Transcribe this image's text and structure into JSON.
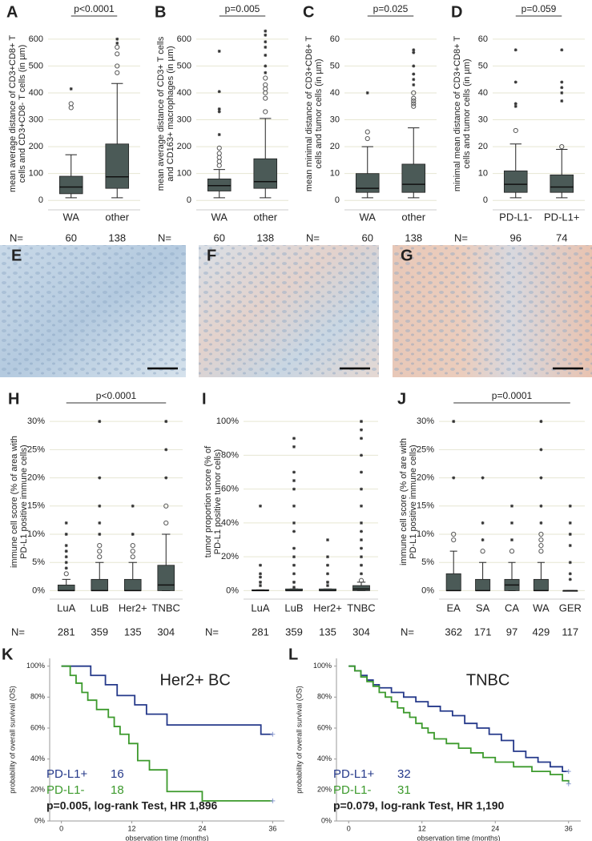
{
  "chart_data": [
    {
      "type": "box",
      "label": "A",
      "ylabel": [
        "mean average distance of CD3+CD8+ T",
        "cells and CD3+CD8- T cells (in µm)"
      ],
      "p_text": "p<0.0001",
      "categories": [
        "WA",
        "other"
      ],
      "n_label": "N=",
      "n": [
        60,
        138
      ],
      "color": "#4b5a57",
      "ylim": [
        -35,
        680
      ],
      "yticks": [
        0,
        100,
        200,
        300,
        400,
        500,
        600
      ],
      "grid": true,
      "boxes": [
        {
          "whisker_low": 10,
          "q1": 25,
          "median": 50,
          "q3": 90,
          "whisker_high": 170,
          "outliers": [
            345,
            360
          ],
          "extremes": [
            415
          ]
        },
        {
          "whisker_low": 10,
          "q1": 45,
          "median": 88,
          "q3": 210,
          "whisker_high": 435,
          "outliers": [
            475,
            500,
            545,
            570
          ],
          "extremes": [
            585,
            600
          ]
        }
      ]
    },
    {
      "type": "box",
      "label": "B",
      "ylabel": [
        "mean average distance of CD3+ T cells",
        "and CD163+ macrophages (in µm)"
      ],
      "p_text": "p=0.005",
      "categories": [
        "WA",
        "other"
      ],
      "n_label": "N=",
      "n": [
        60,
        138
      ],
      "color": "#4b5a57",
      "ylim": [
        -35,
        680
      ],
      "yticks": [
        0,
        100,
        200,
        300,
        400,
        500,
        600
      ],
      "grid": true,
      "boxes": [
        {
          "whisker_low": 10,
          "q1": 35,
          "median": 55,
          "q3": 80,
          "whisker_high": 115,
          "outliers": [
            130,
            145,
            160,
            175,
            195
          ],
          "extremes": [
            245,
            330,
            340,
            405,
            555
          ]
        },
        {
          "whisker_low": 10,
          "q1": 45,
          "median": 70,
          "q3": 155,
          "whisker_high": 305,
          "outliers": [
            330,
            380,
            400,
            415,
            430,
            455
          ],
          "extremes": [
            475,
            500,
            540,
            570,
            590,
            615,
            630
          ]
        }
      ]
    },
    {
      "type": "box",
      "label": "C",
      "ylabel": [
        "mean minimal distance of CD3+CD8+ T",
        "cells and tumor cells (in µm)"
      ],
      "p_text": "p=0.025",
      "categories": [
        "WA",
        "other"
      ],
      "n_label": "N=",
      "n": [
        60,
        138
      ],
      "color": "#4b5a57",
      "ylim": [
        -3.5,
        68
      ],
      "yticks": [
        0,
        10,
        20,
        30,
        40,
        50,
        60
      ],
      "grid": true,
      "boxes": [
        {
          "whisker_low": 1,
          "q1": 3,
          "median": 4.5,
          "q3": 10,
          "whisker_high": 20,
          "outliers": [
            23,
            25.5
          ],
          "extremes": [
            40
          ]
        },
        {
          "whisker_low": 1,
          "q1": 3,
          "median": 6,
          "q3": 13.5,
          "whisker_high": 27,
          "outliers": [
            35,
            36,
            37,
            38,
            40
          ],
          "extremes": [
            43,
            45,
            47,
            50,
            55,
            56
          ]
        }
      ]
    },
    {
      "type": "box",
      "label": "D",
      "ylabel": [
        "minimal mean distance of CD3+CD8+ T",
        "cells and tumor cells (in µm)"
      ],
      "p_text": "p=0.059",
      "categories": [
        "PD-L1-",
        "PD-L1+"
      ],
      "n_label": "N=",
      "n": [
        96,
        74
      ],
      "color": "#4b5a57",
      "ylim": [
        -3.5,
        68
      ],
      "yticks": [
        0,
        10,
        20,
        30,
        40,
        50,
        60
      ],
      "grid": true,
      "boxes": [
        {
          "whisker_low": 1,
          "q1": 3,
          "median": 6,
          "q3": 11,
          "whisker_high": 21,
          "outliers": [
            26
          ],
          "extremes": [
            35,
            36,
            44,
            56
          ]
        },
        {
          "whisker_low": 1,
          "q1": 3,
          "median": 5,
          "q3": 9.5,
          "whisker_high": 19,
          "outliers": [
            20
          ],
          "extremes": [
            37,
            40,
            42,
            44,
            56
          ]
        }
      ]
    },
    {
      "type": "box",
      "label": "H",
      "ylabel": [
        "immune cell score (% of area with",
        "PD-L1 positive immune cells)"
      ],
      "p_text": "p<0.0001",
      "categories": [
        "LuA",
        "LuB",
        "Her2+",
        "TNBC"
      ],
      "n_label": "N=",
      "n": [
        281,
        359,
        135,
        304
      ],
      "color": "#4b5a57",
      "ylim": [
        -1.5,
        33
      ],
      "yticks": [
        {
          "value": 0,
          "label": "0%"
        },
        {
          "value": 5,
          "label": "5%"
        },
        {
          "value": 10,
          "label": "10%"
        },
        {
          "value": 15,
          "label": "15%"
        },
        {
          "value": 20,
          "label": "20%"
        },
        {
          "value": 25,
          "label": "25%"
        },
        {
          "value": 30,
          "label": "30%"
        }
      ],
      "grid": true,
      "boxes": [
        {
          "whisker_low": 0,
          "q1": 0,
          "median": 0,
          "q3": 1,
          "whisker_high": 2,
          "outliers": [
            3
          ],
          "extremes": [
            4,
            5,
            6,
            7,
            8,
            10,
            12
          ]
        },
        {
          "whisker_low": 0,
          "q1": 0,
          "median": 0,
          "q3": 2,
          "whisker_high": 5,
          "outliers": [
            6,
            7,
            8
          ],
          "extremes": [
            10,
            12,
            15,
            20,
            30
          ]
        },
        {
          "whisker_low": 0,
          "q1": 0,
          "median": 0,
          "q3": 2,
          "whisker_high": 5,
          "outliers": [
            6,
            7,
            8
          ],
          "extremes": [
            10,
            15
          ]
        },
        {
          "whisker_low": 0,
          "q1": 0,
          "median": 1,
          "q3": 4.5,
          "whisker_high": 10,
          "outliers": [
            12,
            15
          ],
          "extremes": [
            20,
            25,
            30
          ]
        }
      ]
    },
    {
      "type": "box",
      "label": "I",
      "ylabel": [
        "tumor proportion score (% of",
        "PD-L1 positive tumor cells)"
      ],
      "categories": [
        "LuA",
        "LuB",
        "Her2+",
        "TNBC"
      ],
      "n_label": "N=",
      "n": [
        281,
        359,
        135,
        304
      ],
      "color": "#4b5a57",
      "ylim": [
        -5,
        110
      ],
      "yticks": [
        {
          "value": 0,
          "label": "0%"
        },
        {
          "value": 20,
          "label": "20%"
        },
        {
          "value": 40,
          "label": "40%"
        },
        {
          "value": 60,
          "label": "60%"
        },
        {
          "value": 80,
          "label": "80%"
        },
        {
          "value": 100,
          "label": "100%"
        }
      ],
      "grid": true,
      "boxes": [
        {
          "whisker_low": 0,
          "q1": 0,
          "median": 0,
          "q3": 0.5,
          "whisker_high": 0.5,
          "outliers": [],
          "extremes": [
            3,
            5,
            8,
            10,
            15,
            50
          ]
        },
        {
          "whisker_low": 0,
          "q1": 0,
          "median": 0,
          "q3": 1,
          "whisker_high": 1,
          "outliers": [],
          "extremes": [
            2,
            5,
            10,
            15,
            20,
            25,
            35,
            40,
            50,
            60,
            65,
            70,
            85,
            90
          ]
        },
        {
          "whisker_low": 0,
          "q1": 0,
          "median": 0,
          "q3": 1,
          "whisker_high": 1,
          "outliers": [],
          "extremes": [
            3,
            5,
            10,
            15,
            20,
            30
          ]
        },
        {
          "whisker_low": 0,
          "q1": 0,
          "median": 1,
          "q3": 3,
          "whisker_high": 5,
          "outliers": [
            6
          ],
          "extremes": [
            10,
            15,
            20,
            25,
            30,
            35,
            40,
            50,
            60,
            70,
            80,
            90,
            95,
            100
          ]
        }
      ]
    },
    {
      "type": "box",
      "label": "J",
      "ylabel": [
        "immune cell score (% of are with",
        "PD-L1 positive immune cells)"
      ],
      "p_text": "p=0.0001",
      "categories": [
        "EA",
        "SA",
        "CA",
        "WA",
        "GER"
      ],
      "n_label": "N=",
      "n": [
        362,
        171,
        97,
        429,
        117
      ],
      "color": "#4b5a57",
      "ylim": [
        -1.5,
        33
      ],
      "yticks": [
        {
          "value": 0,
          "label": "0%"
        },
        {
          "value": 5,
          "label": "5%"
        },
        {
          "value": 10,
          "label": "10%"
        },
        {
          "value": 15,
          "label": "15%"
        },
        {
          "value": 20,
          "label": "20%"
        },
        {
          "value": 25,
          "label": "25%"
        },
        {
          "value": 30,
          "label": "30%"
        }
      ],
      "grid": true,
      "boxes": [
        {
          "whisker_low": 0,
          "q1": 0,
          "median": 0,
          "q3": 3,
          "whisker_high": 7,
          "outliers": [
            9,
            10
          ],
          "extremes": [
            20,
            30
          ]
        },
        {
          "whisker_low": 0,
          "q1": 0,
          "median": 0,
          "q3": 2,
          "whisker_high": 5,
          "outliers": [
            7
          ],
          "extremes": [
            9,
            12,
            20
          ]
        },
        {
          "whisker_low": 0,
          "q1": 0,
          "median": 1,
          "q3": 2,
          "whisker_high": 5,
          "outliers": [
            7
          ],
          "extremes": [
            9,
            12,
            15
          ]
        },
        {
          "whisker_low": 0,
          "q1": 0,
          "median": 0,
          "q3": 2,
          "whisker_high": 5,
          "outliers": [
            7,
            8,
            9,
            10
          ],
          "extremes": [
            12,
            15,
            20,
            25,
            30
          ]
        },
        {
          "whisker_low": 0,
          "q1": 0,
          "median": 0,
          "q3": 0,
          "whisker_high": 0,
          "outliers": [],
          "extremes": [
            2,
            3,
            5,
            8,
            10,
            12,
            15
          ]
        }
      ]
    },
    {
      "type": "step",
      "label": "K",
      "title": "Her2+ BC",
      "ylabel": "probability of overall survival (OS)",
      "xlabel": "observation time (months)",
      "annotation": "p=0.005, log-rank Test, HR 1,896",
      "xlim": [
        -2,
        38
      ],
      "xticks": [
        0,
        12,
        24,
        36
      ],
      "ylim": [
        0,
        105
      ],
      "yticks": [
        {
          "value": 0,
          "label": "0%"
        },
        {
          "value": 20,
          "label": "20%"
        },
        {
          "value": 40,
          "label": "40%"
        },
        {
          "value": 60,
          "label": "60%"
        },
        {
          "value": 80,
          "label": "80%"
        },
        {
          "value": 100,
          "label": "100%"
        }
      ],
      "series": [
        {
          "name": "PD-L1+",
          "n": 16,
          "color": "#25398a",
          "x": [
            0,
            5,
            7.5,
            9.5,
            12.5,
            14.5,
            18,
            34,
            36
          ],
          "values": [
            100,
            94,
            88,
            81,
            75,
            69,
            62,
            56,
            56
          ]
        },
        {
          "name": "PD-L1-",
          "n": 18,
          "color": "#3c9a2c",
          "x": [
            0,
            1.5,
            2.5,
            3.5,
            4.5,
            6,
            8,
            9,
            10,
            11.5,
            13,
            15,
            18,
            24,
            36
          ],
          "values": [
            100,
            94,
            89,
            83,
            78,
            72,
            67,
            61,
            56,
            50,
            39,
            33,
            19,
            13,
            13
          ]
        }
      ]
    },
    {
      "type": "step",
      "label": "L",
      "title": "TNBC",
      "ylabel": "probability of overall survival (OS)",
      "xlabel": "observation time (months)",
      "annotation": "p=0.079, log-rank Test, HR 1,190",
      "xlim": [
        -2,
        38
      ],
      "xticks": [
        0,
        12,
        24,
        36
      ],
      "ylim": [
        0,
        105
      ],
      "yticks": [
        {
          "value": 0,
          "label": "0%"
        },
        {
          "value": 20,
          "label": "20%"
        },
        {
          "value": 40,
          "label": "40%"
        },
        {
          "value": 60,
          "label": "60%"
        },
        {
          "value": 80,
          "label": "80%"
        },
        {
          "value": 100,
          "label": "100%"
        }
      ],
      "series": [
        {
          "name": "PD-L1+",
          "n": 32,
          "color": "#25398a",
          "x": [
            0,
            1,
            2,
            3,
            4,
            5,
            7,
            9,
            11,
            13,
            15,
            17,
            19,
            21,
            23,
            25,
            27,
            29,
            31,
            33,
            35,
            36
          ],
          "values": [
            100,
            97,
            94,
            91,
            88,
            86,
            83,
            80,
            77,
            74,
            71,
            68,
            63,
            60,
            56,
            52,
            45,
            41,
            38,
            35,
            32,
            32
          ]
        },
        {
          "name": "PD-L1-",
          "n": 31,
          "color": "#3c9a2c",
          "x": [
            0,
            1,
            2,
            3,
            4,
            5,
            6,
            7,
            8,
            9,
            10,
            11,
            12,
            13,
            14,
            16,
            18,
            20,
            22,
            24,
            27,
            30,
            33,
            35,
            36
          ],
          "values": [
            100,
            97,
            93,
            90,
            87,
            83,
            80,
            77,
            73,
            70,
            67,
            63,
            60,
            57,
            53,
            50,
            47,
            44,
            41,
            38,
            35,
            32,
            30,
            26,
            24
          ]
        }
      ]
    }
  ],
  "image_panels": [
    {
      "label": "E"
    },
    {
      "label": "F"
    },
    {
      "label": "G"
    }
  ]
}
